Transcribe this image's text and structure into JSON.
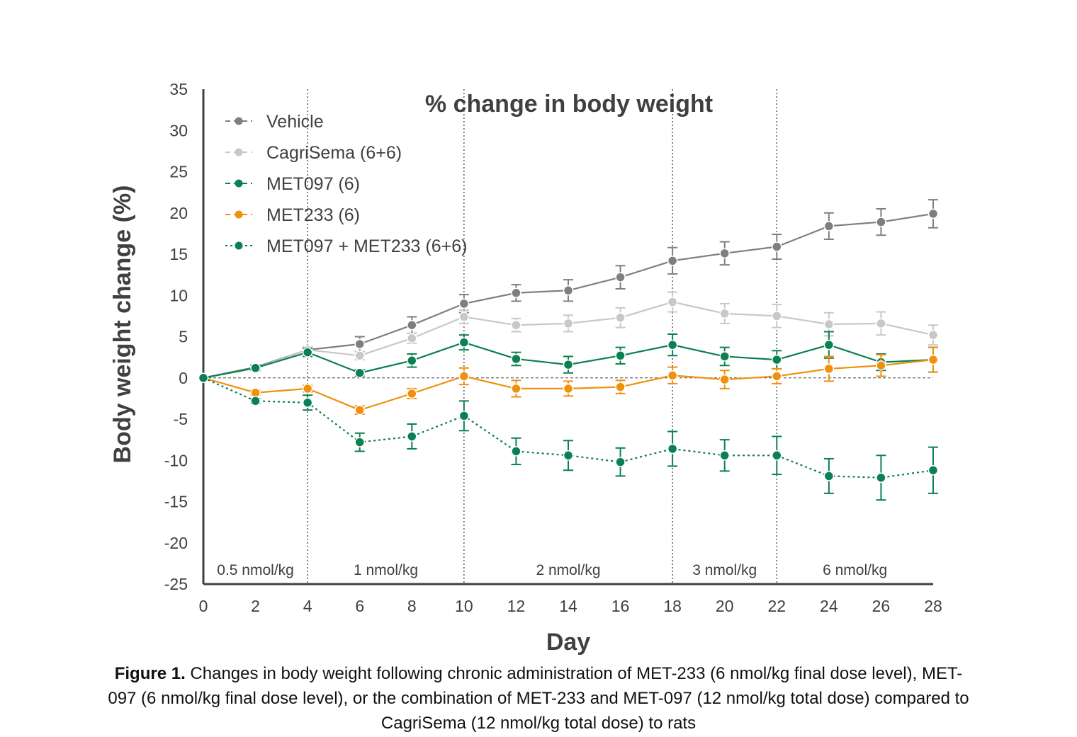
{
  "chart_data": {
    "type": "line",
    "title": "% change in body weight",
    "xlabel": "Day",
    "ylabel": "Body weight change (%)",
    "xlim": [
      0,
      28
    ],
    "ylim": [
      -25,
      35
    ],
    "xticks": [
      0,
      2,
      4,
      6,
      8,
      10,
      12,
      14,
      16,
      18,
      20,
      22,
      24,
      26,
      28
    ],
    "yticks": [
      35,
      30,
      25,
      20,
      15,
      10,
      5,
      0,
      -5,
      -10,
      -15,
      -20,
      -25
    ],
    "grid": false,
    "legend_position": "top-left",
    "x": [
      0,
      2,
      4,
      6,
      8,
      10,
      12,
      14,
      16,
      18,
      20,
      22,
      24,
      26,
      28
    ],
    "series": [
      {
        "name": "Vehicle",
        "color": "#7f7f7f",
        "line": "solid",
        "values": [
          0,
          1.3,
          3.4,
          4.1,
          6.4,
          9.0,
          10.3,
          10.6,
          12.2,
          14.2,
          15.1,
          15.9,
          18.4,
          18.9,
          19.9
        ],
        "error": [
          0,
          0.3,
          0.4,
          0.9,
          1.0,
          1.1,
          1.0,
          1.3,
          1.4,
          1.6,
          1.4,
          1.5,
          1.6,
          1.6,
          1.7
        ]
      },
      {
        "name": "CagriSema (6+6)",
        "color": "#c8c8c8",
        "line": "solid",
        "values": [
          0,
          1.2,
          3.4,
          2.7,
          4.8,
          7.4,
          6.4,
          6.6,
          7.3,
          9.2,
          7.8,
          7.5,
          6.5,
          6.6,
          5.2
        ],
        "error": [
          0,
          0.3,
          0.4,
          0.5,
          0.6,
          0.8,
          0.8,
          1.0,
          1.2,
          1.2,
          1.2,
          1.4,
          1.4,
          1.4,
          1.2
        ]
      },
      {
        "name": "MET097 (6)",
        "color": "#0b8052",
        "line": "solid",
        "values": [
          0,
          1.2,
          3.1,
          0.6,
          2.1,
          4.3,
          2.3,
          1.6,
          2.7,
          4.0,
          2.6,
          2.2,
          4.0,
          1.9,
          2.2
        ],
        "error": [
          0,
          0.3,
          0.5,
          0.4,
          0.8,
          0.9,
          0.8,
          1.0,
          1.0,
          1.3,
          1.1,
          1.1,
          1.6,
          1.0,
          1.5
        ]
      },
      {
        "name": "MET233 (6)",
        "color": "#f0900f",
        "line": "solid",
        "values": [
          0,
          -1.8,
          -1.3,
          -3.9,
          -1.9,
          0.2,
          -1.3,
          -1.3,
          -1.1,
          0.3,
          -0.2,
          0.2,
          1.1,
          1.5,
          2.2
        ],
        "error": [
          0,
          0.3,
          0.4,
          0.5,
          0.6,
          1.0,
          1.0,
          0.9,
          0.8,
          1.0,
          1.1,
          0.9,
          1.5,
          1.3,
          1.5
        ]
      },
      {
        "name": "MET097 + MET233 (6+6)",
        "color": "#0b8052",
        "line": "dotted",
        "values": [
          0,
          -2.8,
          -3.0,
          -7.8,
          -7.1,
          -4.6,
          -8.9,
          -9.4,
          -10.2,
          -8.6,
          -9.4,
          -9.4,
          -11.9,
          -12.1,
          -11.2
        ],
        "error": [
          0,
          0.3,
          0.9,
          1.1,
          1.5,
          1.8,
          1.6,
          1.8,
          1.7,
          2.1,
          1.9,
          2.3,
          2.1,
          2.7,
          2.8
        ]
      }
    ],
    "dose_boundaries": [
      4,
      10,
      18,
      22
    ],
    "dose_periods": [
      {
        "label": "0.5 nmol/kg",
        "from": 0,
        "to": 4
      },
      {
        "label": "1 nmol/kg",
        "from": 4,
        "to": 10
      },
      {
        "label": "2 nmol/kg",
        "from": 10,
        "to": 18
      },
      {
        "label": "3 nmol/kg",
        "from": 18,
        "to": 22
      },
      {
        "label": "6 nmol/kg",
        "from": 22,
        "to": 28
      }
    ]
  },
  "caption": {
    "label": "Figure 1.",
    "text": " Changes in body weight following chronic administration of MET-233 (6 nmol/kg final dose level), MET-097 (6 nmol/kg final dose level), or the combination of MET-233 and MET-097 (12 nmol/kg total dose) compared to CagriSema (12 nmol/kg total dose) to rats"
  }
}
